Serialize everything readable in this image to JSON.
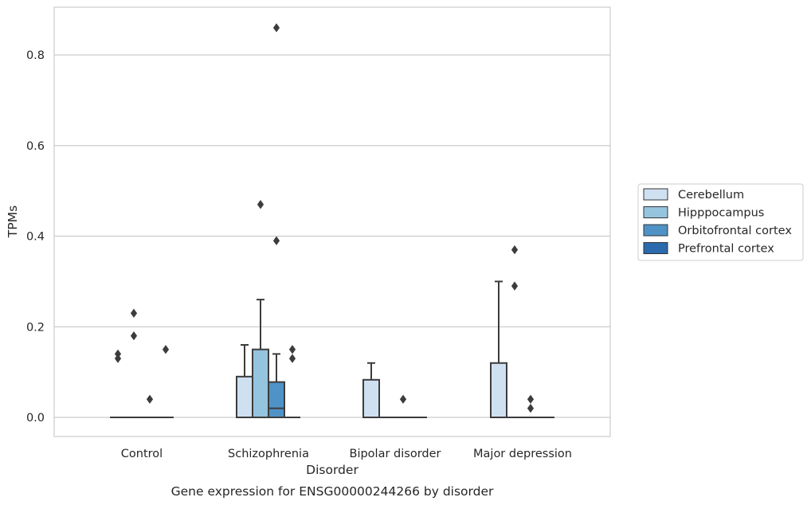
{
  "caption": "Gene expression for ENSG00000244266 by disorder",
  "colors": {
    "grid": "#cccccc",
    "frame": "#cccccc",
    "line": "#3c3c3c",
    "series": [
      "#cfe0f1",
      "#95c4de",
      "#4f93c6",
      "#2a6aad"
    ]
  },
  "chart_data": {
    "type": "box",
    "title": "",
    "xlabel": "Disorder",
    "ylabel": "TPMs",
    "categories": [
      "Control",
      "Schizophrenia",
      "Bipolar disorder",
      "Major depression"
    ],
    "ylim": [
      -0.042,
      0.902
    ],
    "yticks": [
      0.0,
      0.2,
      0.4,
      0.6,
      0.8
    ],
    "ytick_labels": [
      "0.0",
      "0.2",
      "0.4",
      "0.6",
      "0.8"
    ],
    "grid": "horizontal",
    "legend_position": "right",
    "series": [
      {
        "name": "Cerebellum",
        "boxes": [
          {
            "q1": 0,
            "median": 0,
            "q3": 0,
            "whisker_low": 0,
            "whisker_high": 0,
            "outliers": [
              0.14,
              0.13
            ]
          },
          {
            "q1": 0,
            "median": 0,
            "q3": 0.09,
            "whisker_low": 0,
            "whisker_high": 0.16,
            "outliers": []
          },
          {
            "q1": 0,
            "median": 0,
            "q3": 0.083,
            "whisker_low": 0,
            "whisker_high": 0.12,
            "outliers": []
          },
          {
            "q1": 0,
            "median": 0,
            "q3": 0.12,
            "whisker_low": 0,
            "whisker_high": 0.3,
            "outliers": []
          }
        ]
      },
      {
        "name": "Hipppocampus",
        "boxes": [
          {
            "q1": 0,
            "median": 0,
            "q3": 0,
            "whisker_low": 0,
            "whisker_high": 0,
            "outliers": [
              0.23,
              0.18
            ]
          },
          {
            "q1": 0,
            "median": 0,
            "q3": 0.15,
            "whisker_low": 0,
            "whisker_high": 0.26,
            "outliers": [
              0.47
            ]
          },
          {
            "q1": 0,
            "median": 0,
            "q3": 0,
            "whisker_low": 0,
            "whisker_high": 0,
            "outliers": []
          },
          {
            "q1": 0,
            "median": 0,
            "q3": 0,
            "whisker_low": 0,
            "whisker_high": 0,
            "outliers": [
              0.37,
              0.29
            ]
          }
        ]
      },
      {
        "name": "Orbitofrontal cortex",
        "boxes": [
          {
            "q1": 0,
            "median": 0,
            "q3": 0,
            "whisker_low": 0,
            "whisker_high": 0,
            "outliers": [
              0.04
            ]
          },
          {
            "q1": 0,
            "median": 0.02,
            "q3": 0.078,
            "whisker_low": 0,
            "whisker_high": 0.14,
            "outliers": [
              0.86,
              0.39
            ]
          },
          {
            "q1": 0,
            "median": 0,
            "q3": 0,
            "whisker_low": 0,
            "whisker_high": 0,
            "outliers": [
              0.04
            ]
          },
          {
            "q1": 0,
            "median": 0,
            "q3": 0,
            "whisker_low": 0,
            "whisker_high": 0,
            "outliers": [
              0.04,
              0.02
            ]
          }
        ]
      },
      {
        "name": "Prefrontal cortex",
        "boxes": [
          {
            "q1": 0,
            "median": 0,
            "q3": 0,
            "whisker_low": 0,
            "whisker_high": 0,
            "outliers": [
              0.15
            ]
          },
          {
            "q1": 0,
            "median": 0,
            "q3": 0,
            "whisker_low": 0,
            "whisker_high": 0,
            "outliers": [
              0.15,
              0.13
            ]
          },
          {
            "q1": 0,
            "median": 0,
            "q3": 0,
            "whisker_low": 0,
            "whisker_high": 0,
            "outliers": []
          },
          {
            "q1": 0,
            "median": 0,
            "q3": 0,
            "whisker_low": 0,
            "whisker_high": 0,
            "outliers": []
          }
        ]
      }
    ]
  }
}
